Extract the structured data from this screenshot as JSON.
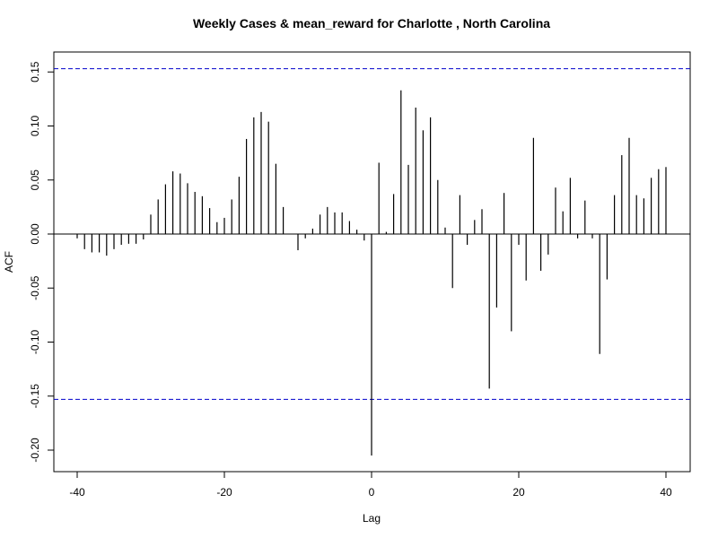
{
  "chart_data": {
    "type": "bar",
    "title": "Weekly Cases & mean_reward for Charlotte , North Carolina",
    "xlabel": "Lag",
    "ylabel": "ACF",
    "xlim": [
      -40,
      40
    ],
    "ylim": [
      -0.22,
      0.16
    ],
    "x_ticks": [
      "-40",
      "-20",
      "0",
      "20",
      "40"
    ],
    "y_ticks": [
      "-0.20",
      "-0.15",
      "-0.10",
      "-0.05",
      "0.00",
      "0.05",
      "0.10",
      "0.15"
    ],
    "confidence_bound": 0.153,
    "lags": [
      -40,
      -39,
      -38,
      -37,
      -36,
      -35,
      -34,
      -33,
      -32,
      -31,
      -30,
      -29,
      -28,
      -27,
      -26,
      -25,
      -24,
      -23,
      -22,
      -21,
      -20,
      -19,
      -18,
      -17,
      -16,
      -15,
      -14,
      -13,
      -12,
      -11,
      -10,
      -9,
      -8,
      -7,
      -6,
      -5,
      -4,
      -3,
      -2,
      -1,
      0,
      1,
      2,
      3,
      4,
      5,
      6,
      7,
      8,
      9,
      10,
      11,
      12,
      13,
      14,
      15,
      16,
      17,
      18,
      19,
      20,
      21,
      22,
      23,
      24,
      25,
      26,
      27,
      28,
      29,
      30,
      31,
      32,
      33,
      34,
      35,
      36,
      37,
      38,
      39,
      40
    ],
    "acf": [
      -0.004,
      -0.014,
      -0.017,
      -0.017,
      -0.02,
      -0.014,
      -0.01,
      -0.009,
      -0.009,
      -0.005,
      0.018,
      0.032,
      0.046,
      0.058,
      0.056,
      0.047,
      0.039,
      0.035,
      0.024,
      0.011,
      0.015,
      0.032,
      0.053,
      0.088,
      0.108,
      0.113,
      0.104,
      0.065,
      0.025,
      0.0,
      -0.015,
      -0.004,
      0.005,
      0.018,
      0.025,
      0.02,
      0.02,
      0.012,
      0.004,
      -0.006,
      -0.205,
      0.066,
      0.002,
      0.037,
      0.133,
      0.064,
      0.117,
      0.096,
      0.108,
      0.05,
      0.006,
      -0.05,
      0.036,
      -0.01,
      0.013,
      0.023,
      -0.143,
      -0.068,
      0.038,
      -0.09,
      -0.01,
      -0.043,
      0.089,
      -0.034,
      -0.019,
      0.043,
      0.021,
      0.052,
      -0.004,
      0.031,
      -0.004,
      -0.111,
      -0.042,
      0.036,
      0.073,
      0.089,
      0.036,
      0.033,
      0.052,
      0.06,
      0.062
    ],
    "colors": {
      "bars": "#000000",
      "bound": "#0000cc",
      "zero": "#000000"
    },
    "grid": false,
    "legend": "none"
  }
}
